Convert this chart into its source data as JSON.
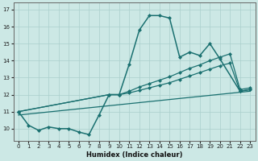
{
  "xlabel": "Humidex (Indice chaleur)",
  "bg_color": "#cce8e5",
  "line_color": "#1a7070",
  "grid_color": "#aacfcc",
  "xlim": [
    -0.5,
    23.5
  ],
  "ylim": [
    9.3,
    17.4
  ],
  "yticks": [
    10,
    11,
    12,
    13,
    14,
    15,
    16,
    17
  ],
  "xticks": [
    0,
    1,
    2,
    3,
    4,
    5,
    6,
    7,
    8,
    9,
    10,
    11,
    12,
    13,
    14,
    15,
    16,
    17,
    18,
    19,
    20,
    21,
    22,
    23
  ],
  "main_curve": {
    "x": [
      0,
      1,
      2,
      3,
      4,
      5,
      6,
      7,
      8,
      9,
      10,
      11,
      12,
      13,
      14,
      15,
      16,
      17,
      18,
      19,
      20,
      22,
      23
    ],
    "y": [
      11.0,
      10.2,
      9.9,
      10.1,
      10.0,
      10.0,
      9.8,
      9.65,
      10.8,
      12.0,
      12.0,
      13.8,
      15.8,
      16.65,
      16.65,
      16.5,
      14.2,
      14.5,
      14.3,
      15.0,
      14.1,
      12.2,
      12.3
    ]
  },
  "line1": {
    "x": [
      0,
      9,
      10,
      11,
      12,
      13,
      14,
      15,
      16,
      17,
      18,
      19,
      20,
      21,
      22,
      23
    ],
    "y": [
      11.0,
      12.0,
      12.0,
      12.1,
      12.25,
      12.4,
      12.55,
      12.7,
      12.9,
      13.1,
      13.3,
      13.5,
      13.7,
      13.85,
      12.2,
      12.3
    ]
  },
  "line2": {
    "x": [
      0,
      9,
      10,
      11,
      12,
      13,
      14,
      15,
      16,
      17,
      18,
      19,
      20,
      21,
      22,
      23
    ],
    "y": [
      11.0,
      12.0,
      12.0,
      12.2,
      12.45,
      12.65,
      12.85,
      13.05,
      13.3,
      13.55,
      13.75,
      14.0,
      14.2,
      14.4,
      12.3,
      12.4
    ]
  },
  "line3": {
    "x": [
      0,
      23
    ],
    "y": [
      10.8,
      12.2
    ]
  }
}
